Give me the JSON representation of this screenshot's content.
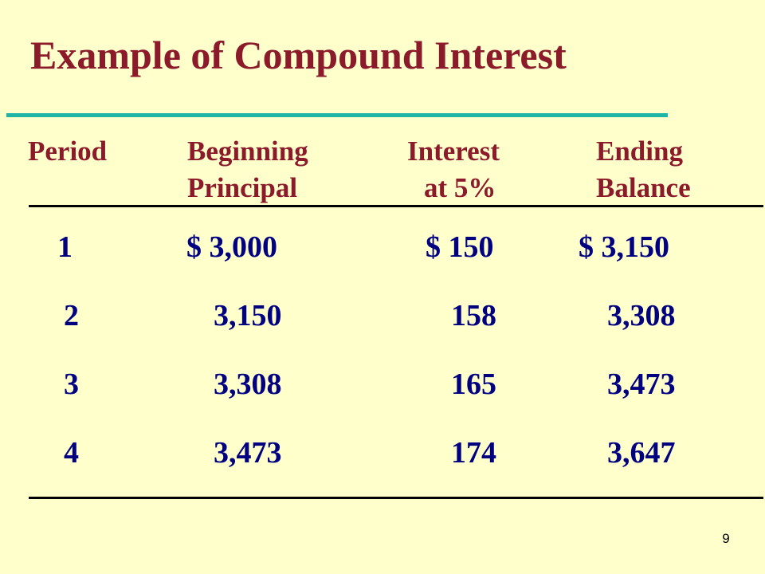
{
  "slide": {
    "title": "Example of Compound Interest",
    "page_number": "9"
  },
  "table": {
    "headers": [
      {
        "line1": "Period",
        "line2": ""
      },
      {
        "line1": "Beginning",
        "line2": "Principal"
      },
      {
        "line1": "Interest",
        "line2": "at 5%"
      },
      {
        "line1": "Ending",
        "line2": "Balance"
      }
    ],
    "rows": [
      {
        "period": "1",
        "principal": "$ 3,000",
        "interest": "$ 150",
        "balance": "$ 3,150"
      },
      {
        "period": "2",
        "principal": "3,150",
        "interest": "158",
        "balance": "3,308"
      },
      {
        "period": "3",
        "principal": "3,308",
        "interest": "165",
        "balance": "3,473"
      },
      {
        "period": "4",
        "principal": "3,473",
        "interest": "174",
        "balance": "3,647"
      }
    ]
  },
  "colors": {
    "background": "#FFFFCC",
    "title": "#8B1A2B",
    "accent_rule": "#1FB5A6",
    "header_text": "#8B1A2B",
    "body_text": "#000080"
  }
}
